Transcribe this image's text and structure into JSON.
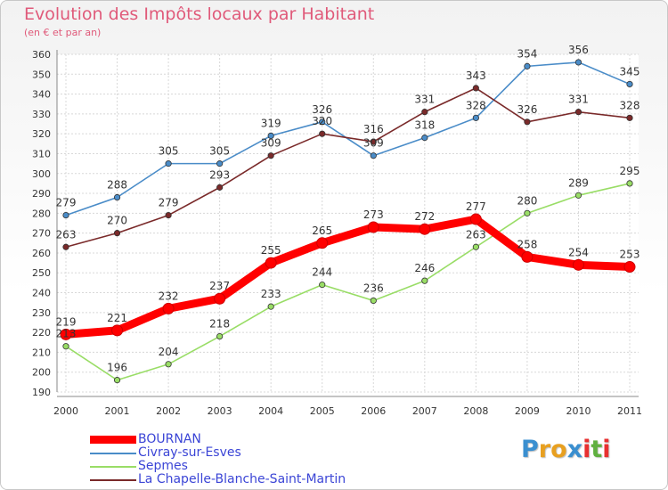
{
  "chart_data": {
    "type": "line",
    "title": "Evolution des Impôts locaux par Habitant",
    "subtitle": "(en € et par an)",
    "xlabel": "",
    "ylabel": "",
    "x": [
      "2000",
      "2001",
      "2002",
      "2003",
      "2004",
      "2005",
      "2006",
      "2007",
      "2008",
      "2009",
      "2010",
      "2011"
    ],
    "ylim": [
      190,
      360
    ],
    "yticks": [
      "190",
      "200",
      "210",
      "220",
      "230",
      "240",
      "250",
      "260",
      "270",
      "280",
      "290",
      "300",
      "310",
      "320",
      "330",
      "340",
      "350",
      "360"
    ],
    "grid": true,
    "legend_position": "bottom-left",
    "series": [
      {
        "name": "BOURNAN",
        "color": "#ff0000",
        "values": [
          219,
          221,
          232,
          237,
          255,
          265,
          273,
          272,
          277,
          258,
          254,
          253
        ],
        "labels": [
          "219",
          "221",
          "232",
          "237",
          "255",
          "265",
          "273",
          "272",
          "277",
          "258",
          "254",
          "253"
        ]
      },
      {
        "name": "Civray-sur-Esves",
        "color": "#4a8cc8",
        "values": [
          279,
          288,
          305,
          305,
          319,
          326,
          309,
          318,
          328,
          354,
          356,
          345
        ],
        "labels": [
          "279",
          "288",
          "305",
          "305",
          "319",
          "326",
          "309",
          "318",
          "328",
          "354",
          "356",
          "345"
        ]
      },
      {
        "name": "Sepmes",
        "color": "#99dd66",
        "values": [
          213,
          196,
          204,
          218,
          233,
          244,
          236,
          246,
          263,
          280,
          289,
          295
        ],
        "labels": [
          "213",
          "196",
          "204",
          "218",
          "233",
          "244",
          "236",
          "246",
          "263",
          "280",
          "289",
          "295"
        ]
      },
      {
        "name": "La Chapelle-Blanche-Saint-Martin",
        "color": "#7a2a2a",
        "values": [
          263,
          270,
          279,
          293,
          309,
          320,
          316,
          331,
          343,
          326,
          331,
          328
        ],
        "labels": [
          "263",
          "270",
          "279",
          "293",
          "309",
          "320",
          "316",
          "331",
          "343",
          "326",
          "331",
          "328"
        ]
      }
    ]
  },
  "logo": {
    "letters": [
      "P",
      "r",
      "o",
      "x",
      "i",
      "t",
      "i"
    ],
    "colors": [
      "#3a8fd0",
      "#e8a020",
      "#e8a020",
      "#3a8fd0",
      "#e83030",
      "#60b040",
      "#e83030"
    ]
  }
}
